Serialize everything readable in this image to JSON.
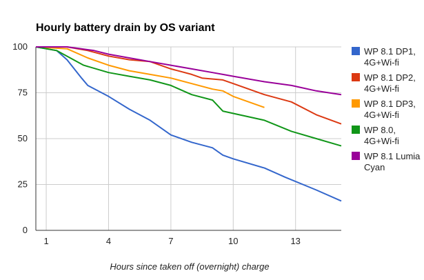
{
  "chart_data": {
    "type": "line",
    "title": "Hourly battery drain by OS variant",
    "xlabel": "Hours since taken off (overnight) charge",
    "ylabel": "",
    "xlim": [
      0.5,
      15.2
    ],
    "ylim": [
      0,
      100
    ],
    "xticks": [
      1,
      4,
      7,
      10,
      13
    ],
    "yticks": [
      0,
      25,
      50,
      75,
      100
    ],
    "grid": true,
    "legend": "right",
    "series": [
      {
        "name": "WP 8.1 DP1, 4G+Wi-fi",
        "color": "#3366cc",
        "points": [
          [
            0.5,
            100
          ],
          [
            1.5,
            98
          ],
          [
            2,
            93
          ],
          [
            2.7,
            83
          ],
          [
            3,
            79
          ],
          [
            4,
            73
          ],
          [
            5,
            66
          ],
          [
            6,
            60
          ],
          [
            7,
            52
          ],
          [
            8,
            48
          ],
          [
            9,
            45
          ],
          [
            9.5,
            41
          ],
          [
            10,
            39
          ],
          [
            11.5,
            34
          ],
          [
            12.5,
            29
          ],
          [
            14,
            22
          ],
          [
            15.2,
            16
          ]
        ]
      },
      {
        "name": "WP 8.1 DP2, 4G+Wi-fi",
        "color": "#dc3912",
        "points": [
          [
            0.5,
            100
          ],
          [
            2,
            100
          ],
          [
            3,
            98
          ],
          [
            4,
            95
          ],
          [
            5,
            93
          ],
          [
            6,
            92
          ],
          [
            7,
            88
          ],
          [
            8,
            85
          ],
          [
            8.5,
            83
          ],
          [
            9.5,
            82
          ],
          [
            10,
            80
          ],
          [
            11.5,
            74
          ],
          [
            12.8,
            70
          ],
          [
            14,
            63
          ],
          [
            15.2,
            58
          ]
        ]
      },
      {
        "name": "WP 8.1 DP3, 4G+Wi-fi",
        "color": "#ff9900",
        "points": [
          [
            0.5,
            100
          ],
          [
            2,
            99
          ],
          [
            3,
            94
          ],
          [
            4,
            90
          ],
          [
            5,
            87
          ],
          [
            6,
            85
          ],
          [
            7,
            83
          ],
          [
            8,
            80
          ],
          [
            9,
            77
          ],
          [
            9.5,
            76
          ],
          [
            10,
            73
          ],
          [
            11.5,
            67
          ]
        ]
      },
      {
        "name": "WP 8.0, 4G+Wi-fi",
        "color": "#109618",
        "points": [
          [
            0.5,
            100
          ],
          [
            1.5,
            98
          ],
          [
            2.8,
            90
          ],
          [
            4,
            86
          ],
          [
            5,
            84
          ],
          [
            6,
            82
          ],
          [
            7,
            79
          ],
          [
            8,
            74
          ],
          [
            9,
            71
          ],
          [
            9.5,
            65
          ],
          [
            11.5,
            60
          ],
          [
            12.8,
            54
          ],
          [
            14,
            50
          ],
          [
            15.2,
            46
          ]
        ]
      },
      {
        "name": "WP 8.1 Lumia Cyan",
        "color": "#990099",
        "points": [
          [
            0.5,
            100
          ],
          [
            2,
            100
          ],
          [
            3.3,
            98
          ],
          [
            4,
            96
          ],
          [
            5,
            94
          ],
          [
            6,
            92
          ],
          [
            7,
            90
          ],
          [
            8,
            88
          ],
          [
            9,
            86
          ],
          [
            9.5,
            85
          ],
          [
            10,
            84
          ],
          [
            11.5,
            81
          ],
          [
            12.8,
            79
          ],
          [
            14,
            76
          ],
          [
            15.2,
            74
          ]
        ]
      }
    ]
  }
}
